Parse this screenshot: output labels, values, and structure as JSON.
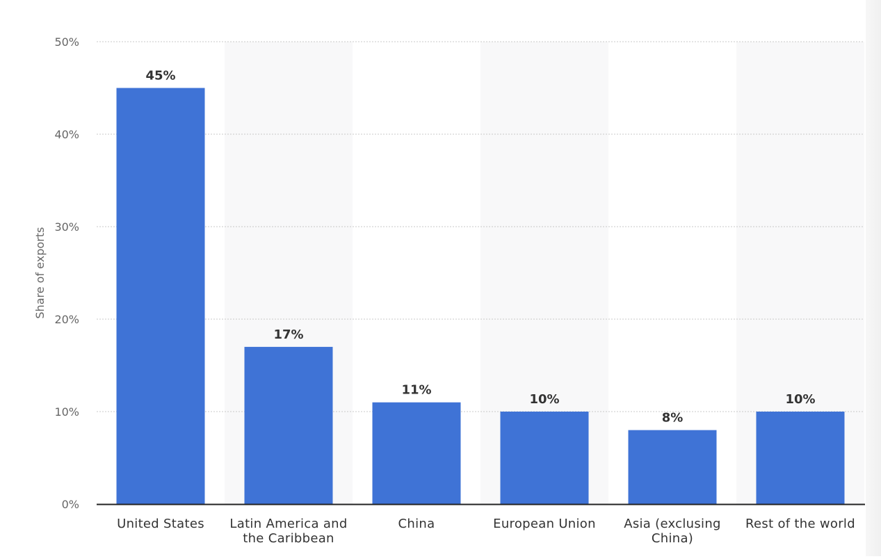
{
  "chart_data": {
    "type": "bar",
    "categories": [
      [
        "United States"
      ],
      [
        "Latin America and",
        "the Caribbean"
      ],
      [
        "China"
      ],
      [
        "European Union"
      ],
      [
        "Asia (exclusing",
        "China)"
      ],
      [
        "Rest of the world"
      ]
    ],
    "values": [
      45,
      17,
      11,
      10,
      8,
      10
    ],
    "data_labels": [
      "45%",
      "17%",
      "11%",
      "10%",
      "8%",
      "10%"
    ],
    "yticks": [
      0,
      10,
      20,
      30,
      40,
      50
    ],
    "ytick_labels": [
      "0%",
      "10%",
      "20%",
      "30%",
      "40%",
      "50%"
    ],
    "ylim": [
      0,
      50
    ],
    "ylabel": "Share of exports",
    "xlabel": "",
    "grid": true,
    "colors": {
      "bar": "#3f73d6",
      "band": "#f8f8f9",
      "grid": "#c8c8c8",
      "axis": "#222222"
    }
  }
}
